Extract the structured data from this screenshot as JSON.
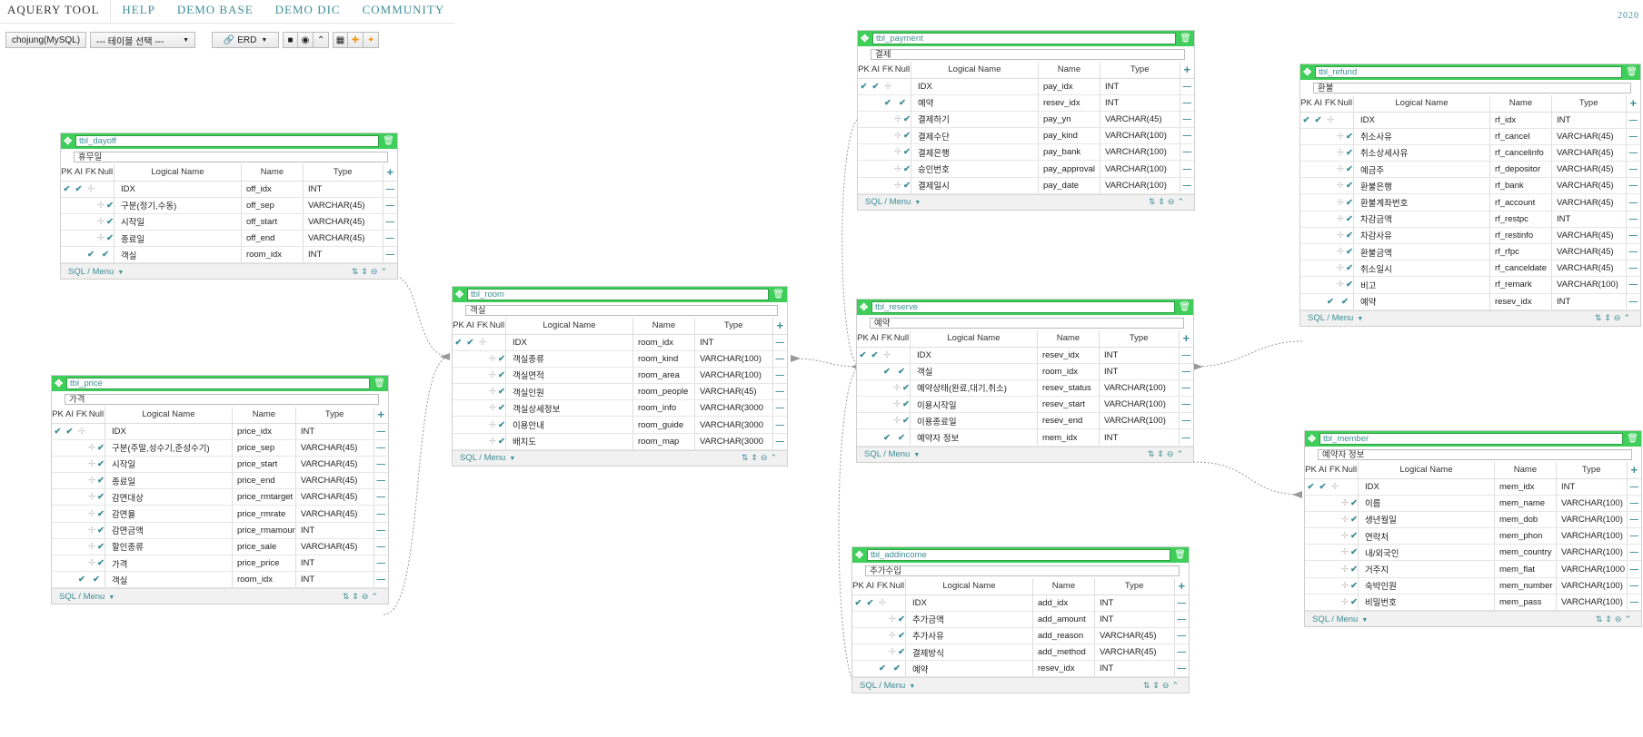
{
  "nav": {
    "items": [
      "AQUERY TOOL",
      "HELP",
      "DEMO BASE",
      "DEMO DIC",
      "COMMUNITY"
    ],
    "year": "2020"
  },
  "toolbar": {
    "connection": "chojung(MySQL)",
    "table_select": "--- 테이블 선택 ---",
    "erd": "ERD",
    "icons": [
      "save-icon",
      "eye-icon",
      "chevron-up-icon",
      "grid-icon",
      "move-icon",
      "pin-icon"
    ]
  },
  "headers": {
    "pk": "PK",
    "ai": "AI",
    "fk": "FK",
    "nn": "Null",
    "logical": "Logical Name",
    "name": "Name",
    "type": "Type"
  },
  "footer": {
    "sql_menu": "SQL / Menu",
    "icons": [
      "sort-icon",
      "expand-icon",
      "minus-circle-icon",
      "collapse-icon"
    ]
  },
  "colors": {
    "accent": "#3fce5a",
    "link": "#3d8e96"
  },
  "tables": {
    "dayoff": {
      "name": "tbl_dayoff",
      "comment": "휴무일",
      "columns": [
        {
          "pk": true,
          "ai": true,
          "fk": false,
          "nn": false,
          "logical": "IDX",
          "name": "off_idx",
          "type": "INT"
        },
        {
          "pk": false,
          "ai": false,
          "fk": false,
          "nn": true,
          "logical": "구분(정기,수동)",
          "name": "off_sep",
          "type": "VARCHAR(45)"
        },
        {
          "pk": false,
          "ai": false,
          "fk": false,
          "nn": true,
          "logical": "시작일",
          "name": "off_start",
          "type": "VARCHAR(45)"
        },
        {
          "pk": false,
          "ai": false,
          "fk": false,
          "nn": true,
          "logical": "종료일",
          "name": "off_end",
          "type": "VARCHAR(45)"
        },
        {
          "pk": false,
          "ai": false,
          "fk": true,
          "nn": true,
          "logical": "객실",
          "name": "room_idx",
          "type": "INT"
        }
      ]
    },
    "price": {
      "name": "tbl_price",
      "comment": "가격",
      "columns": [
        {
          "pk": true,
          "ai": true,
          "fk": false,
          "nn": false,
          "logical": "IDX",
          "name": "price_idx",
          "type": "INT"
        },
        {
          "pk": false,
          "ai": false,
          "fk": false,
          "nn": true,
          "logical": "구분(주말,성수기,준성수기)",
          "name": "price_sep",
          "type": "VARCHAR(45)"
        },
        {
          "pk": false,
          "ai": false,
          "fk": false,
          "nn": true,
          "logical": "시작일",
          "name": "price_start",
          "type": "VARCHAR(45)"
        },
        {
          "pk": false,
          "ai": false,
          "fk": false,
          "nn": true,
          "logical": "종료일",
          "name": "price_end",
          "type": "VARCHAR(45)"
        },
        {
          "pk": false,
          "ai": false,
          "fk": false,
          "nn": true,
          "logical": "감면대상",
          "name": "price_rmtarget",
          "type": "VARCHAR(45)"
        },
        {
          "pk": false,
          "ai": false,
          "fk": false,
          "nn": true,
          "logical": "감면율",
          "name": "price_rmrate",
          "type": "VARCHAR(45)"
        },
        {
          "pk": false,
          "ai": false,
          "fk": false,
          "nn": true,
          "logical": "감면금액",
          "name": "price_rmamour",
          "type": "INT"
        },
        {
          "pk": false,
          "ai": false,
          "fk": false,
          "nn": true,
          "logical": "할인종류",
          "name": "price_sale",
          "type": "VARCHAR(45)"
        },
        {
          "pk": false,
          "ai": false,
          "fk": false,
          "nn": true,
          "logical": "가격",
          "name": "price_price",
          "type": "INT"
        },
        {
          "pk": false,
          "ai": false,
          "fk": true,
          "nn": true,
          "logical": "객실",
          "name": "room_idx",
          "type": "INT"
        }
      ]
    },
    "room": {
      "name": "tbl_room",
      "comment": "객실",
      "columns": [
        {
          "pk": true,
          "ai": true,
          "fk": false,
          "nn": false,
          "logical": "IDX",
          "name": "room_idx",
          "type": "INT"
        },
        {
          "pk": false,
          "ai": false,
          "fk": false,
          "nn": true,
          "logical": "객실종류",
          "name": "room_kind",
          "type": "VARCHAR(100)"
        },
        {
          "pk": false,
          "ai": false,
          "fk": false,
          "nn": true,
          "logical": "객실면적",
          "name": "room_area",
          "type": "VARCHAR(100)"
        },
        {
          "pk": false,
          "ai": false,
          "fk": false,
          "nn": true,
          "logical": "객실인원",
          "name": "room_people",
          "type": "VARCHAR(45)"
        },
        {
          "pk": false,
          "ai": false,
          "fk": false,
          "nn": true,
          "logical": "객실상세정보",
          "name": "room_info",
          "type": "VARCHAR(3000"
        },
        {
          "pk": false,
          "ai": false,
          "fk": false,
          "nn": true,
          "logical": "이용안내",
          "name": "room_guide",
          "type": "VARCHAR(3000"
        },
        {
          "pk": false,
          "ai": false,
          "fk": false,
          "nn": true,
          "logical": "배치도",
          "name": "room_map",
          "type": "VARCHAR(3000"
        }
      ]
    },
    "payment": {
      "name": "tbl_payment",
      "comment": "결제",
      "columns": [
        {
          "pk": true,
          "ai": true,
          "fk": false,
          "nn": false,
          "logical": "IDX",
          "name": "pay_idx",
          "type": "INT"
        },
        {
          "pk": false,
          "ai": false,
          "fk": true,
          "nn": true,
          "logical": "예약",
          "name": "resev_idx",
          "type": "INT"
        },
        {
          "pk": false,
          "ai": false,
          "fk": false,
          "nn": true,
          "logical": "결제하기",
          "name": "pay_yn",
          "type": "VARCHAR(45)"
        },
        {
          "pk": false,
          "ai": false,
          "fk": false,
          "nn": true,
          "logical": "결제수단",
          "name": "pay_kind",
          "type": "VARCHAR(100)"
        },
        {
          "pk": false,
          "ai": false,
          "fk": false,
          "nn": true,
          "logical": "결제은행",
          "name": "pay_bank",
          "type": "VARCHAR(100)"
        },
        {
          "pk": false,
          "ai": false,
          "fk": false,
          "nn": true,
          "logical": "승인번호",
          "name": "pay_approval",
          "type": "VARCHAR(100)"
        },
        {
          "pk": false,
          "ai": false,
          "fk": false,
          "nn": true,
          "logical": "결제일시",
          "name": "pay_date",
          "type": "VARCHAR(100)"
        }
      ]
    },
    "reserve": {
      "name": "tbl_reserve",
      "comment": "예약",
      "columns": [
        {
          "pk": true,
          "ai": true,
          "fk": false,
          "nn": false,
          "logical": "IDX",
          "name": "resev_idx",
          "type": "INT"
        },
        {
          "pk": false,
          "ai": false,
          "fk": true,
          "nn": true,
          "logical": "객실",
          "name": "room_idx",
          "type": "INT"
        },
        {
          "pk": false,
          "ai": false,
          "fk": false,
          "nn": true,
          "logical": "예약상태(완료,대기,취소)",
          "name": "resev_status",
          "type": "VARCHAR(100)"
        },
        {
          "pk": false,
          "ai": false,
          "fk": false,
          "nn": true,
          "logical": "이용시작일",
          "name": "resev_start",
          "type": "VARCHAR(100)"
        },
        {
          "pk": false,
          "ai": false,
          "fk": false,
          "nn": true,
          "logical": "이용종료일",
          "name": "resev_end",
          "type": "VARCHAR(100)"
        },
        {
          "pk": false,
          "ai": false,
          "fk": true,
          "nn": true,
          "logical": "예약자 정보",
          "name": "mem_idx",
          "type": "INT"
        }
      ]
    },
    "addincome": {
      "name": "tbl_addincome",
      "comment": "추가수입",
      "columns": [
        {
          "pk": true,
          "ai": true,
          "fk": false,
          "nn": false,
          "logical": "IDX",
          "name": "add_idx",
          "type": "INT"
        },
        {
          "pk": false,
          "ai": false,
          "fk": false,
          "nn": true,
          "logical": "추가금액",
          "name": "add_amount",
          "type": "INT"
        },
        {
          "pk": false,
          "ai": false,
          "fk": false,
          "nn": true,
          "logical": "추가사유",
          "name": "add_reason",
          "type": "VARCHAR(45)"
        },
        {
          "pk": false,
          "ai": false,
          "fk": false,
          "nn": true,
          "logical": "결제방식",
          "name": "add_method",
          "type": "VARCHAR(45)"
        },
        {
          "pk": false,
          "ai": false,
          "fk": true,
          "nn": true,
          "logical": "예약",
          "name": "resev_idx",
          "type": "INT"
        }
      ]
    },
    "refund": {
      "name": "tbl_refund",
      "comment": "환불",
      "columns": [
        {
          "pk": true,
          "ai": true,
          "fk": false,
          "nn": false,
          "logical": "IDX",
          "name": "rf_idx",
          "type": "INT"
        },
        {
          "pk": false,
          "ai": false,
          "fk": false,
          "nn": true,
          "logical": "취소사유",
          "name": "rf_cancel",
          "type": "VARCHAR(45)"
        },
        {
          "pk": false,
          "ai": false,
          "fk": false,
          "nn": true,
          "logical": "취소상세사유",
          "name": "rf_cancelinfo",
          "type": "VARCHAR(45)"
        },
        {
          "pk": false,
          "ai": false,
          "fk": false,
          "nn": true,
          "logical": "예금주",
          "name": "rf_depositor",
          "type": "VARCHAR(45)"
        },
        {
          "pk": false,
          "ai": false,
          "fk": false,
          "nn": true,
          "logical": "환불은행",
          "name": "rf_bank",
          "type": "VARCHAR(45)"
        },
        {
          "pk": false,
          "ai": false,
          "fk": false,
          "nn": true,
          "logical": "환불계좌번호",
          "name": "rf_account",
          "type": "VARCHAR(45)"
        },
        {
          "pk": false,
          "ai": false,
          "fk": false,
          "nn": true,
          "logical": "차감금액",
          "name": "rf_restpc",
          "type": "INT"
        },
        {
          "pk": false,
          "ai": false,
          "fk": false,
          "nn": true,
          "logical": "차감사유",
          "name": "rf_restinfo",
          "type": "VARCHAR(45)"
        },
        {
          "pk": false,
          "ai": false,
          "fk": false,
          "nn": true,
          "logical": "환불금액",
          "name": "rf_rfpc",
          "type": "VARCHAR(45)"
        },
        {
          "pk": false,
          "ai": false,
          "fk": false,
          "nn": true,
          "logical": "취소일시",
          "name": "rf_canceldate",
          "type": "VARCHAR(45)"
        },
        {
          "pk": false,
          "ai": false,
          "fk": false,
          "nn": true,
          "logical": "비고",
          "name": "rf_remark",
          "type": "VARCHAR(100)"
        },
        {
          "pk": false,
          "ai": false,
          "fk": true,
          "nn": true,
          "logical": "예약",
          "name": "resev_idx",
          "type": "INT"
        }
      ]
    },
    "member": {
      "name": "tbl_member",
      "comment": "예약자 정보",
      "columns": [
        {
          "pk": true,
          "ai": true,
          "fk": false,
          "nn": false,
          "logical": "IDX",
          "name": "mem_idx",
          "type": "INT"
        },
        {
          "pk": false,
          "ai": false,
          "fk": false,
          "nn": true,
          "logical": "이름",
          "name": "mem_name",
          "type": "VARCHAR(100)"
        },
        {
          "pk": false,
          "ai": false,
          "fk": false,
          "nn": true,
          "logical": "생년월일",
          "name": "mem_dob",
          "type": "VARCHAR(100)"
        },
        {
          "pk": false,
          "ai": false,
          "fk": false,
          "nn": true,
          "logical": "연락처",
          "name": "mem_phon",
          "type": "VARCHAR(100)"
        },
        {
          "pk": false,
          "ai": false,
          "fk": false,
          "nn": true,
          "logical": "내/외국인",
          "name": "mem_country",
          "type": "VARCHAR(100)"
        },
        {
          "pk": false,
          "ai": false,
          "fk": false,
          "nn": true,
          "logical": "거주지",
          "name": "mem_flat",
          "type": "VARCHAR(1000"
        },
        {
          "pk": false,
          "ai": false,
          "fk": false,
          "nn": true,
          "logical": "숙박인원",
          "name": "mem_number",
          "type": "VARCHAR(100)"
        },
        {
          "pk": false,
          "ai": false,
          "fk": false,
          "nn": true,
          "logical": "비밀번호",
          "name": "mem_pass",
          "type": "VARCHAR(100)"
        }
      ]
    }
  }
}
